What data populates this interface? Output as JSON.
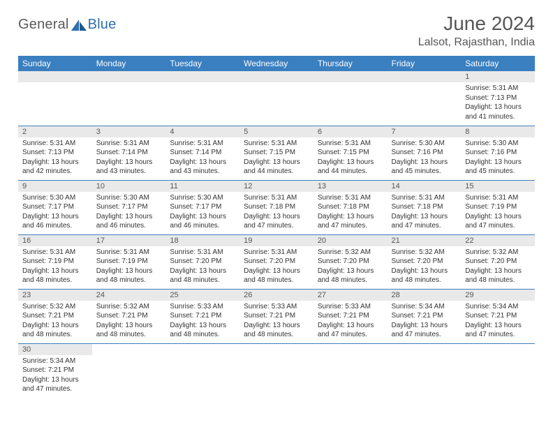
{
  "logo": {
    "general": "General",
    "blue": "Blue"
  },
  "header": {
    "title": "June 2024",
    "location": "Lalsot, Rajasthan, India"
  },
  "weekdays": [
    "Sunday",
    "Monday",
    "Tuesday",
    "Wednesday",
    "Thursday",
    "Friday",
    "Saturday"
  ],
  "colors": {
    "header_bg": "#3a7fc0",
    "header_text": "#ffffff",
    "daynum_bg": "#e9e9e9",
    "border": "#3a7fc0",
    "title_color": "#555555",
    "text_color": "#333333",
    "logo_general": "#5a5a5a",
    "logo_blue": "#2f6fab"
  },
  "typography": {
    "title_fontsize": 28,
    "location_fontsize": 16,
    "weekday_fontsize": 12,
    "daynum_fontsize": 11,
    "cell_fontsize": 10
  },
  "layout": {
    "first_weekday_index": 6,
    "days_in_month": 30,
    "columns": 7
  },
  "days": {
    "1": {
      "sunrise": "Sunrise: 5:31 AM",
      "sunset": "Sunset: 7:13 PM",
      "daylight": "Daylight: 13 hours and 41 minutes."
    },
    "2": {
      "sunrise": "Sunrise: 5:31 AM",
      "sunset": "Sunset: 7:13 PM",
      "daylight": "Daylight: 13 hours and 42 minutes."
    },
    "3": {
      "sunrise": "Sunrise: 5:31 AM",
      "sunset": "Sunset: 7:14 PM",
      "daylight": "Daylight: 13 hours and 43 minutes."
    },
    "4": {
      "sunrise": "Sunrise: 5:31 AM",
      "sunset": "Sunset: 7:14 PM",
      "daylight": "Daylight: 13 hours and 43 minutes."
    },
    "5": {
      "sunrise": "Sunrise: 5:31 AM",
      "sunset": "Sunset: 7:15 PM",
      "daylight": "Daylight: 13 hours and 44 minutes."
    },
    "6": {
      "sunrise": "Sunrise: 5:31 AM",
      "sunset": "Sunset: 7:15 PM",
      "daylight": "Daylight: 13 hours and 44 minutes."
    },
    "7": {
      "sunrise": "Sunrise: 5:30 AM",
      "sunset": "Sunset: 7:16 PM",
      "daylight": "Daylight: 13 hours and 45 minutes."
    },
    "8": {
      "sunrise": "Sunrise: 5:30 AM",
      "sunset": "Sunset: 7:16 PM",
      "daylight": "Daylight: 13 hours and 45 minutes."
    },
    "9": {
      "sunrise": "Sunrise: 5:30 AM",
      "sunset": "Sunset: 7:17 PM",
      "daylight": "Daylight: 13 hours and 46 minutes."
    },
    "10": {
      "sunrise": "Sunrise: 5:30 AM",
      "sunset": "Sunset: 7:17 PM",
      "daylight": "Daylight: 13 hours and 46 minutes."
    },
    "11": {
      "sunrise": "Sunrise: 5:30 AM",
      "sunset": "Sunset: 7:17 PM",
      "daylight": "Daylight: 13 hours and 46 minutes."
    },
    "12": {
      "sunrise": "Sunrise: 5:31 AM",
      "sunset": "Sunset: 7:18 PM",
      "daylight": "Daylight: 13 hours and 47 minutes."
    },
    "13": {
      "sunrise": "Sunrise: 5:31 AM",
      "sunset": "Sunset: 7:18 PM",
      "daylight": "Daylight: 13 hours and 47 minutes."
    },
    "14": {
      "sunrise": "Sunrise: 5:31 AM",
      "sunset": "Sunset: 7:18 PM",
      "daylight": "Daylight: 13 hours and 47 minutes."
    },
    "15": {
      "sunrise": "Sunrise: 5:31 AM",
      "sunset": "Sunset: 7:19 PM",
      "daylight": "Daylight: 13 hours and 47 minutes."
    },
    "16": {
      "sunrise": "Sunrise: 5:31 AM",
      "sunset": "Sunset: 7:19 PM",
      "daylight": "Daylight: 13 hours and 48 minutes."
    },
    "17": {
      "sunrise": "Sunrise: 5:31 AM",
      "sunset": "Sunset: 7:19 PM",
      "daylight": "Daylight: 13 hours and 48 minutes."
    },
    "18": {
      "sunrise": "Sunrise: 5:31 AM",
      "sunset": "Sunset: 7:20 PM",
      "daylight": "Daylight: 13 hours and 48 minutes."
    },
    "19": {
      "sunrise": "Sunrise: 5:31 AM",
      "sunset": "Sunset: 7:20 PM",
      "daylight": "Daylight: 13 hours and 48 minutes."
    },
    "20": {
      "sunrise": "Sunrise: 5:32 AM",
      "sunset": "Sunset: 7:20 PM",
      "daylight": "Daylight: 13 hours and 48 minutes."
    },
    "21": {
      "sunrise": "Sunrise: 5:32 AM",
      "sunset": "Sunset: 7:20 PM",
      "daylight": "Daylight: 13 hours and 48 minutes."
    },
    "22": {
      "sunrise": "Sunrise: 5:32 AM",
      "sunset": "Sunset: 7:20 PM",
      "daylight": "Daylight: 13 hours and 48 minutes."
    },
    "23": {
      "sunrise": "Sunrise: 5:32 AM",
      "sunset": "Sunset: 7:21 PM",
      "daylight": "Daylight: 13 hours and 48 minutes."
    },
    "24": {
      "sunrise": "Sunrise: 5:32 AM",
      "sunset": "Sunset: 7:21 PM",
      "daylight": "Daylight: 13 hours and 48 minutes."
    },
    "25": {
      "sunrise": "Sunrise: 5:33 AM",
      "sunset": "Sunset: 7:21 PM",
      "daylight": "Daylight: 13 hours and 48 minutes."
    },
    "26": {
      "sunrise": "Sunrise: 5:33 AM",
      "sunset": "Sunset: 7:21 PM",
      "daylight": "Daylight: 13 hours and 48 minutes."
    },
    "27": {
      "sunrise": "Sunrise: 5:33 AM",
      "sunset": "Sunset: 7:21 PM",
      "daylight": "Daylight: 13 hours and 47 minutes."
    },
    "28": {
      "sunrise": "Sunrise: 5:34 AM",
      "sunset": "Sunset: 7:21 PM",
      "daylight": "Daylight: 13 hours and 47 minutes."
    },
    "29": {
      "sunrise": "Sunrise: 5:34 AM",
      "sunset": "Sunset: 7:21 PM",
      "daylight": "Daylight: 13 hours and 47 minutes."
    },
    "30": {
      "sunrise": "Sunrise: 5:34 AM",
      "sunset": "Sunset: 7:21 PM",
      "daylight": "Daylight: 13 hours and 47 minutes."
    }
  }
}
